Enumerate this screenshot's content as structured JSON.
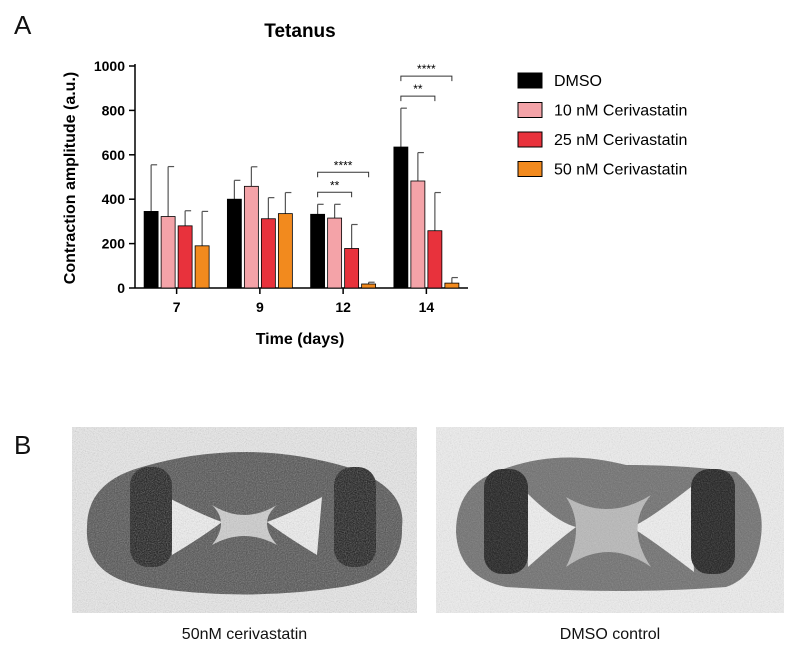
{
  "panels": {
    "a_label": "A",
    "b_label": "B"
  },
  "chart_data": {
    "type": "bar",
    "title": "Tetanus",
    "xlabel": "Time (days)",
    "ylabel": "Contraction amplitude (a.u.)",
    "ylim": [
      0,
      1000
    ],
    "yticks": [
      0,
      200,
      400,
      600,
      800,
      1000
    ],
    "categories": [
      "7",
      "9",
      "12",
      "14"
    ],
    "series": [
      {
        "name": "DMSO",
        "color": "#000000",
        "values": [
          345,
          400,
          332,
          635
        ],
        "errors": [
          210,
          85,
          45,
          175
        ]
      },
      {
        "name": "10 nM Cerivastatin",
        "color": "#f4a3a8",
        "values": [
          322,
          458,
          315,
          482
        ],
        "errors": [
          225,
          88,
          62,
          128
        ]
      },
      {
        "name": "25 nM Cerivastatin",
        "color": "#e8323c",
        "values": [
          280,
          312,
          178,
          258
        ],
        "errors": [
          68,
          95,
          108,
          172
        ]
      },
      {
        "name": "50 nM Cerivastatin",
        "color": "#f28a1e",
        "values": [
          190,
          335,
          18,
          22
        ],
        "errors": [
          155,
          95,
          8,
          25
        ]
      }
    ],
    "legend_position": "right",
    "significance": [
      {
        "category": "12",
        "from_series": 0,
        "to_series": 2,
        "label": "**"
      },
      {
        "category": "12",
        "from_series": 0,
        "to_series": 3,
        "label": "****"
      },
      {
        "category": "14",
        "from_series": 0,
        "to_series": 2,
        "label": "**"
      },
      {
        "category": "14",
        "from_series": 0,
        "to_series": 3,
        "label": "****"
      }
    ]
  },
  "images": [
    {
      "caption": "50nM cerivastatin"
    },
    {
      "caption": "DMSO control"
    }
  ]
}
